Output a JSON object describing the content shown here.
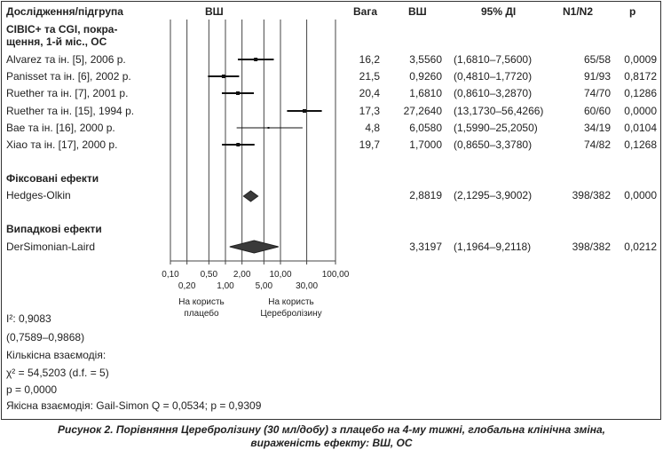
{
  "headers": {
    "study": "Дослідження/підгрупа",
    "plot": "ВШ",
    "weight": "Вага",
    "or": "ВШ",
    "ci": "95% ДІ",
    "n": "N1/N2",
    "p": "p"
  },
  "group_title_line1": "CIBIC+ та CGI, покра-",
  "group_title_line2": "щення, 1-й міс., ОС",
  "studies": [
    {
      "name": "Alvarez та ін. [5], 2006 р.",
      "weight": "16,2",
      "or_text": "3,5560",
      "ci_text": "(1,6810–7,5600)",
      "n": "65/58",
      "p": "0,0009"
    },
    {
      "name": "Panisset та ін. [6], 2002 р.",
      "weight": "21,5",
      "or_text": "0,9260",
      "ci_text": "(0,4810–1,7720)",
      "n": "91/93",
      "p": "0,8172"
    },
    {
      "name": "Ruether та ін. [7], 2001 р.",
      "weight": "20,4",
      "or_text": "1,6810",
      "ci_text": "(0,8610–3,2870)",
      "n": "74/70",
      "p": "0,1286"
    },
    {
      "name": "Ruether та ін. [15], 1994 р.",
      "weight": "17,3",
      "or_text": "27,2640",
      "ci_text": "(13,1730–56,4266)",
      "n": "60/60",
      "p": "0,0000"
    },
    {
      "name": "Bae та ін. [16], 2000 р.",
      "weight": "4,8",
      "or_text": "6,0580",
      "ci_text": "(1,5990–25,2050)",
      "n": "34/19",
      "p": "0,0104"
    },
    {
      "name": "Xiao та ін. [17], 2000 р.",
      "weight": "19,7",
      "or_text": "1,7000",
      "ci_text": "(0,8650–3,3780)",
      "n": "74/82",
      "p": "0,1268"
    }
  ],
  "fixed": {
    "title": "Фіксовані ефекти",
    "method": "Hedges-Olkin",
    "or_text": "2,8819",
    "ci_text": "(2,1295–3,9002)",
    "n": "398/382",
    "p": "0,0000"
  },
  "random": {
    "title": "Випадкові ефекти",
    "method": "DerSimonian-Laird",
    "or_text": "3,3197",
    "ci_text": "(1,1964–9,2118)",
    "n": "398/382",
    "p": "0,0212"
  },
  "favors_left_line1": "На користь",
  "favors_left_line2": "плацебо",
  "favors_right_line1": "На користь",
  "favors_right_line2": "Церебролізину",
  "stats": {
    "i2": "I²: 0,9083",
    "i2_ci": "(0,7589–0,9868)",
    "quant_label": "Кількісна взаємодія:",
    "chi2": "χ² = 54,5203 (d.f. = 5)",
    "p": "p = 0,0000",
    "qual": "Якісна взаємодія: Gail-Simon Q = 0,0534; p = 0,9309"
  },
  "caption_line1": "Рисунок 2. Порівняння Церебролізину (30 мл/добу) з плацебо на 4-му тижні, глобальна клінічна зміна,",
  "caption_line2": "вираженість ефекту: ВШ, ОС",
  "chart_data": {
    "type": "forest",
    "x_scale": "log",
    "xlim": [
      0.1,
      100
    ],
    "x_ticks_upper": [
      "0,10",
      "0,50",
      "2,00",
      "10,00",
      "100,00"
    ],
    "x_ticks_lower": [
      "0,20",
      "1,00",
      "5,00",
      "30,00"
    ],
    "tick_values_upper": [
      0.1,
      0.5,
      2,
      10,
      100
    ],
    "tick_values_lower": [
      0.2,
      1,
      5,
      30
    ],
    "gridlines": [
      0.1,
      0.2,
      0.5,
      1,
      2,
      5,
      10,
      30,
      100
    ],
    "study_points": [
      {
        "or": 3.556,
        "lo": 1.681,
        "hi": 7.56
      },
      {
        "or": 0.926,
        "lo": 0.481,
        "hi": 1.772
      },
      {
        "or": 1.681,
        "lo": 0.861,
        "hi": 3.287
      },
      {
        "or": 27.264,
        "lo": 13.173,
        "hi": 56.4266
      },
      {
        "or": 6.058,
        "lo": 1.599,
        "hi": 25.205
      },
      {
        "or": 1.7,
        "lo": 0.865,
        "hi": 3.378
      }
    ],
    "pooled": [
      {
        "or": 2.8819,
        "lo": 2.1295,
        "hi": 3.9002
      },
      {
        "or": 3.3197,
        "lo": 1.1964,
        "hi": 9.2118
      }
    ]
  }
}
